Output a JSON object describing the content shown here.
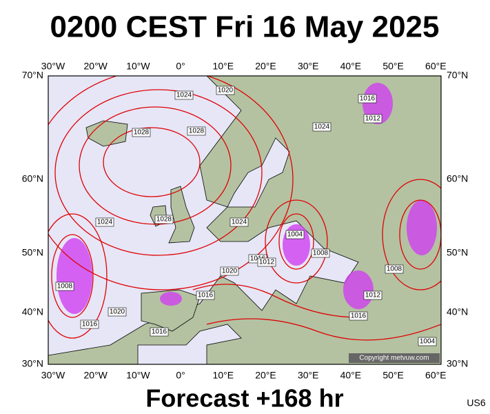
{
  "title": "0200 CEST Fri 16 May 2025",
  "footer": "Forecast +168 hr",
  "code": "US6",
  "copyright": "Copyright metvuw.com",
  "lon_labels": [
    "30°W",
    "20°W",
    "10°W",
    "0°",
    "10°E",
    "20°E",
    "30°E",
    "40°E",
    "50°E",
    "60°E"
  ],
  "lat_labels": [
    "70°N",
    "60°N",
    "50°N",
    "40°N",
    "30°N"
  ],
  "isobar_labels": [
    "1020",
    "1024",
    "1016",
    "1012",
    "1028",
    "1028",
    "1028",
    "1024",
    "1024",
    "1024",
    "1016",
    "1012",
    "1004",
    "1008",
    "1020",
    "1016",
    "1008",
    "1020",
    "1016",
    "1016",
    "1012",
    "1016",
    "1008",
    "1004"
  ]
}
